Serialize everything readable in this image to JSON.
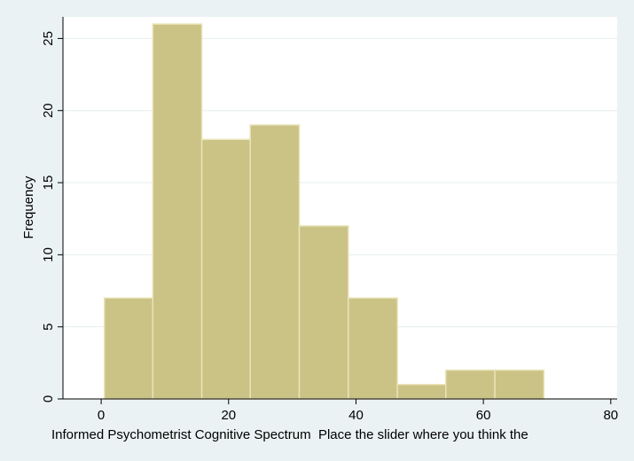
{
  "chart_data": {
    "type": "bar",
    "subtype": "histogram",
    "xlabel": "Informed Psychometrist Cognitive Spectrum  Place the slider where you think the",
    "ylabel": "Frequency",
    "bins": [
      {
        "x0": 0.5,
        "x1": 8.1,
        "value": 7
      },
      {
        "x0": 8.1,
        "x1": 15.8,
        "value": 26
      },
      {
        "x0": 15.8,
        "x1": 23.4,
        "value": 18
      },
      {
        "x0": 23.4,
        "x1": 31.1,
        "value": 19
      },
      {
        "x0": 31.1,
        "x1": 38.8,
        "value": 12
      },
      {
        "x0": 38.8,
        "x1": 46.5,
        "value": 7
      },
      {
        "x0": 46.5,
        "x1": 54.1,
        "value": 1
      },
      {
        "x0": 54.1,
        "x1": 61.8,
        "value": 2
      },
      {
        "x0": 61.8,
        "x1": 69.5,
        "value": 2
      }
    ],
    "xticks": [
      "0",
      "20",
      "40",
      "60",
      "80"
    ],
    "yticks": [
      "0",
      "5",
      "10",
      "15",
      "20",
      "25"
    ],
    "xlim": [
      -6,
      81
    ],
    "ylim": [
      0,
      26.5
    ],
    "grid": true,
    "colors": {
      "bar_fill": "#cbc285",
      "bar_edge": "#e8e4b8",
      "plot_bg": "#ffffff",
      "page_bg": "#eaf2f3",
      "grid": "#e6eef0",
      "axis": "#000000"
    }
  }
}
